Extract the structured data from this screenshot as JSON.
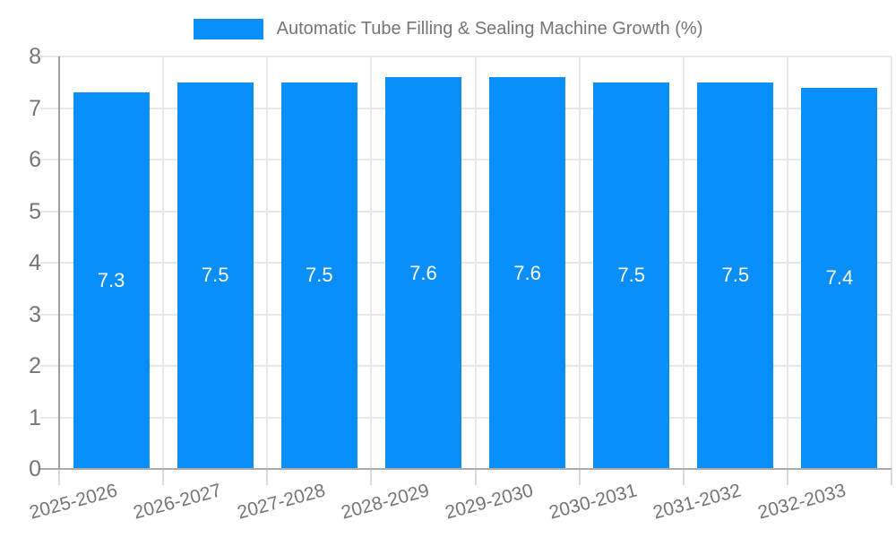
{
  "legend": {
    "label": "Automatic Tube Filling & Sealing Machine Growth (%)"
  },
  "chart_data": {
    "type": "bar",
    "title": "Automatic Tube Filling & Sealing Machine Growth (%)",
    "categories": [
      "2025-2026",
      "2026-2027",
      "2027-2028",
      "2028-2029",
      "2029-2030",
      "2030-2031",
      "2031-2032",
      "2032-2033"
    ],
    "values": [
      7.3,
      7.5,
      7.5,
      7.6,
      7.6,
      7.5,
      7.5,
      7.4
    ],
    "bar_value_labels": [
      "7.3",
      "7.5",
      "7.5",
      "7.6",
      "7.6",
      "7.5",
      "7.5",
      "7.4"
    ],
    "xlabel": "",
    "ylabel": "",
    "ylim": [
      0,
      8
    ],
    "yticks": [
      0,
      1,
      2,
      3,
      4,
      5,
      6,
      7,
      8
    ],
    "grid": "on",
    "legend_position": "top-center",
    "x_label_rotation_deg": -15,
    "colors": {
      "bar": "#0a8ff9",
      "value_label_text": "#ffffff",
      "axis_text": "#757575",
      "title_text": "#757575",
      "gridline": "#e7e7e7",
      "tick": "#d9d9d9",
      "y_axis_line": "#9e9e9e",
      "x_axis_line": "#ababab",
      "background": "#ffffff"
    }
  }
}
